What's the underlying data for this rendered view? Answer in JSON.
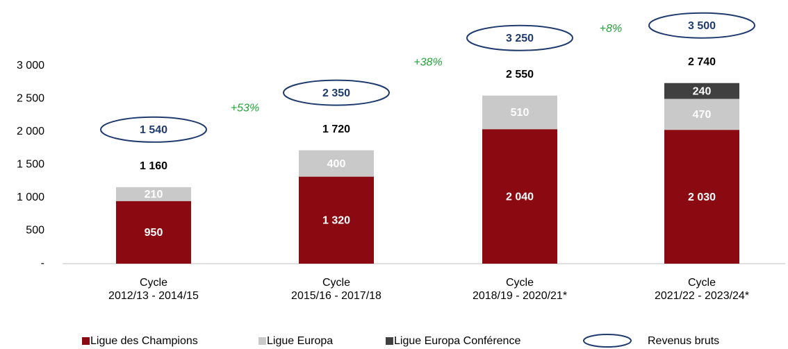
{
  "chart_data": {
    "type": "bar",
    "stacked": true,
    "categories": [
      [
        "Cycle",
        "2012/13 -  2014/15"
      ],
      [
        "Cycle",
        "2015/16 - 2017/18"
      ],
      [
        "Cycle",
        "2018/19 - 2020/21*"
      ],
      [
        "Cycle",
        "2021/22 - 2023/24*"
      ]
    ],
    "series": [
      {
        "name": "Ligue des Champions",
        "color": "#8b0a12",
        "values": [
          950,
          1320,
          2040,
          2030
        ],
        "value_labels": [
          "950",
          "1 320",
          "2 040",
          "2 030"
        ]
      },
      {
        "name": "Ligue Europa",
        "color": "#c9c9c9",
        "values": [
          210,
          400,
          510,
          470
        ],
        "value_labels": [
          "210",
          "400",
          "510",
          "470"
        ]
      },
      {
        "name": "Ligue Europa Conférence",
        "color": "#404040",
        "values": [
          null,
          null,
          null,
          240
        ],
        "value_labels": [
          null,
          null,
          null,
          "240"
        ]
      }
    ],
    "totals": {
      "values": [
        1160,
        1720,
        2550,
        2740
      ],
      "value_labels": [
        "1 160",
        "1 720",
        "2 550",
        "2 740"
      ]
    },
    "gross": {
      "name": "Revenus bruts",
      "color": "#1f3b6e",
      "values": [
        1540,
        2350,
        3250,
        3500
      ],
      "value_labels": [
        "1 540",
        "2 350",
        "3 250",
        "3 500"
      ]
    },
    "annotations": [
      "+53%",
      "+38%",
      "+8%"
    ],
    "annotation_color": "#22a33a",
    "ylim": [
      0,
      3000
    ],
    "yticks": [
      {
        "value": 0,
        "label": "-"
      },
      500,
      {
        "value": 1000,
        "label": "1 000"
      },
      {
        "value": 1500,
        "label": "1 500"
      },
      {
        "value": 2000,
        "label": "2 000"
      },
      {
        "value": 2500,
        "label": "2 500"
      },
      {
        "value": 3000,
        "label": "3 000"
      }
    ]
  }
}
